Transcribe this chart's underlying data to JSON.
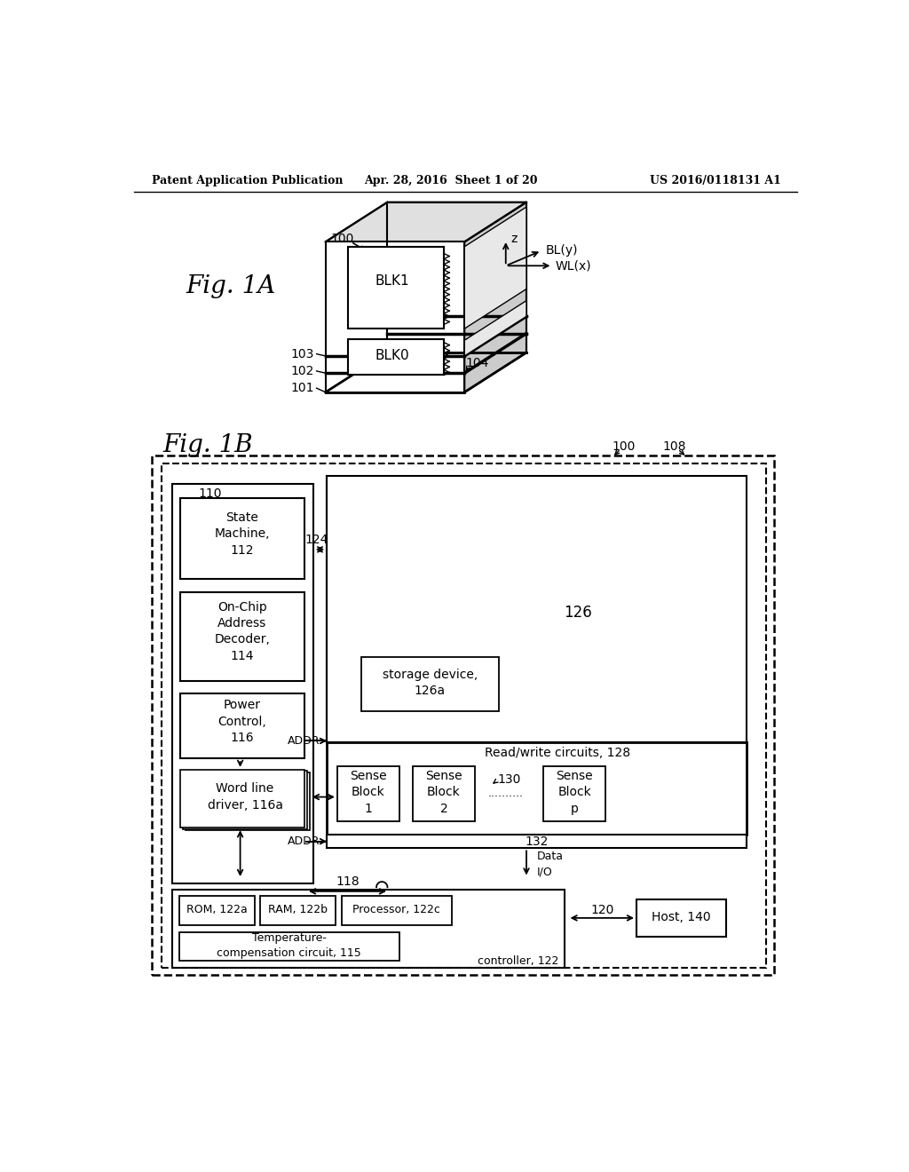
{
  "page_header": {
    "left": "Patent Application Publication",
    "center": "Apr. 28, 2016  Sheet 1 of 20",
    "right": "US 2016/0118131 A1"
  },
  "fig1a_label": "Fig. 1A",
  "fig1b_label": "Fig. 1B",
  "background_color": "#ffffff",
  "line_color": "#000000",
  "text_color": "#000000"
}
